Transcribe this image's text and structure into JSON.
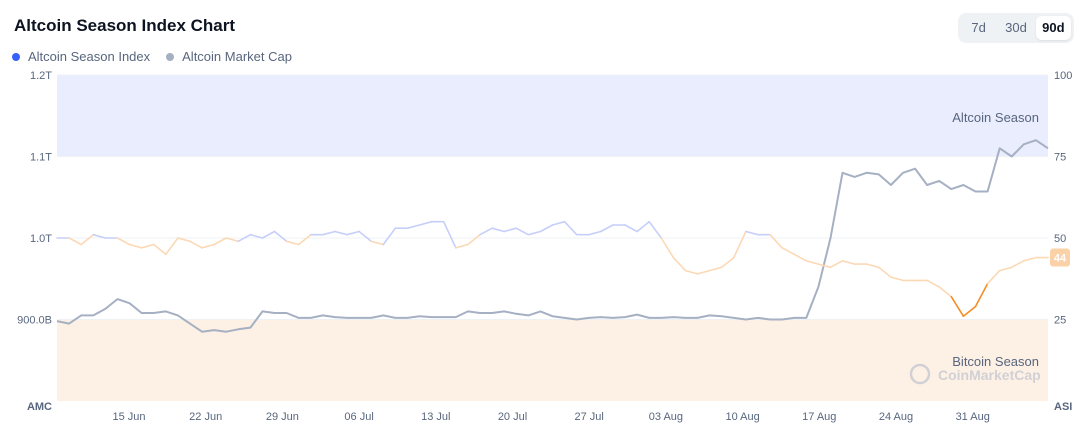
{
  "header": {
    "title": "Altcoin Season Index Chart"
  },
  "legend": [
    {
      "label": "Altcoin Season Index",
      "color": "#3861fb"
    },
    {
      "label": "Altcoin Market Cap",
      "color": "#a6b0c3"
    }
  ],
  "range_toggle": {
    "options": [
      "7d",
      "30d",
      "90d"
    ],
    "selected": "90d"
  },
  "watermark": "CoinMarketCap",
  "current_badge": "44",
  "chart_data": {
    "type": "line",
    "left_axis": {
      "label": "AMC",
      "ticks": [
        "1.2T",
        "1.1T",
        "1.0T",
        "900.0B"
      ],
      "range": [
        800,
        1200
      ],
      "unit": "B USD"
    },
    "right_axis": {
      "label": "ASI",
      "ticks": [
        "100",
        "75",
        "50",
        "25"
      ],
      "range": [
        0,
        100
      ]
    },
    "x_axis": {
      "ticks": [
        "15 Jun",
        "22 Jun",
        "29 Jun",
        "06 Jul",
        "13 Jul",
        "20 Jul",
        "27 Jul",
        "03 Aug",
        "10 Aug",
        "17 Aug",
        "24 Aug",
        "31 Aug"
      ]
    },
    "zones": [
      {
        "label": "Altcoin Season",
        "from": 75,
        "to": 100,
        "color": "#eaedfe"
      },
      {
        "label": "Bitcoin Season",
        "from": 0,
        "to": 25,
        "color": "#fdf1e6"
      }
    ],
    "grid": true,
    "series": [
      {
        "name": "Altcoin Season Index",
        "axis": "right",
        "values": [
          50,
          50,
          48,
          51,
          50,
          50,
          48,
          47,
          48,
          45,
          50,
          49,
          47,
          48,
          50,
          49,
          51,
          50,
          52,
          49,
          48,
          51,
          51,
          52,
          51,
          52,
          49,
          48,
          53,
          53,
          54,
          55,
          55,
          47,
          48,
          51,
          53,
          52,
          53,
          51,
          52,
          54,
          55,
          51,
          51,
          52,
          54,
          54,
          52,
          55,
          50,
          44,
          40,
          39,
          40,
          41,
          44,
          52,
          51,
          51,
          47,
          45,
          43,
          42,
          41,
          43,
          42,
          42,
          41,
          38,
          37,
          37,
          37,
          35,
          32,
          26,
          29,
          36,
          40,
          41,
          43,
          44,
          44
        ]
      },
      {
        "name": "Altcoin Market Cap",
        "axis": "left",
        "values": [
          898,
          895,
          905,
          905,
          913,
          925,
          920,
          908,
          908,
          910,
          905,
          895,
          885,
          887,
          885,
          888,
          890,
          910,
          908,
          908,
          902,
          902,
          905,
          903,
          902,
          902,
          902,
          905,
          902,
          902,
          904,
          903,
          903,
          903,
          910,
          908,
          908,
          910,
          907,
          905,
          910,
          904,
          902,
          900,
          902,
          903,
          902,
          903,
          906,
          902,
          902,
          903,
          902,
          902,
          905,
          904,
          902,
          900,
          902,
          900,
          900,
          902,
          902,
          940,
          1000,
          1080,
          1075,
          1080,
          1078,
          1065,
          1080,
          1085,
          1065,
          1070,
          1060,
          1065,
          1057,
          1057,
          1110,
          1100,
          1115,
          1120,
          1110
        ]
      }
    ]
  }
}
